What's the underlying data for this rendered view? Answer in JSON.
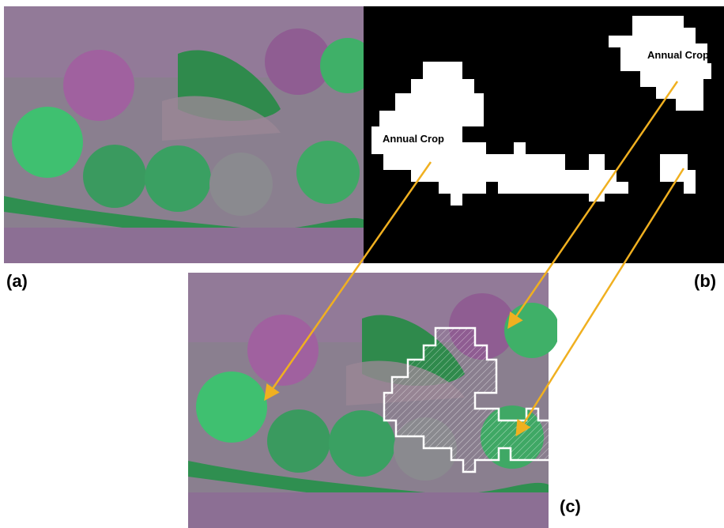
{
  "panels": [
    {
      "label": "(a)"
    },
    {
      "label": "(b)",
      "annotations": [
        "Annual Crop",
        "Annual Crop"
      ]
    },
    {
      "label": "(c)"
    }
  ]
}
